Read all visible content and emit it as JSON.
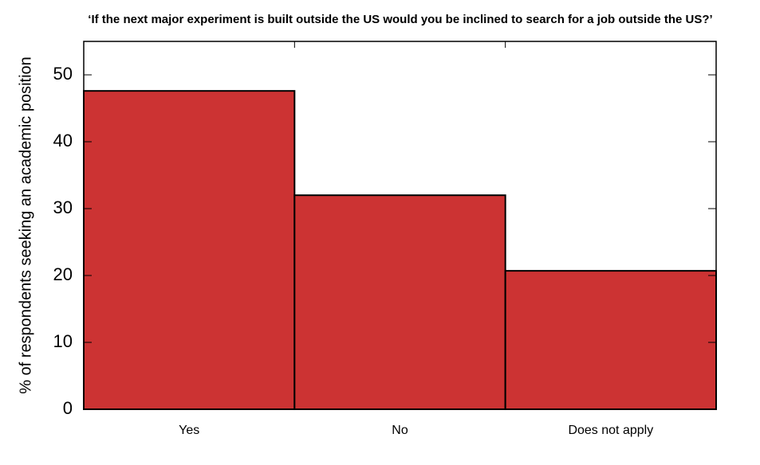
{
  "chart_data": {
    "type": "bar",
    "title": "‘If the next major experiment is built outside the US would you be inclined to search for a job outside the US?’",
    "y_label": "% of respondents seeking an academic position",
    "categories": [
      "Yes",
      "No",
      "Does not apply"
    ],
    "values": [
      47.6,
      32.0,
      20.7
    ],
    "color": "#cc3333",
    "ylim": [
      0,
      55
    ],
    "yticks": [
      0,
      10,
      20,
      30,
      40,
      50
    ],
    "grid": false
  }
}
